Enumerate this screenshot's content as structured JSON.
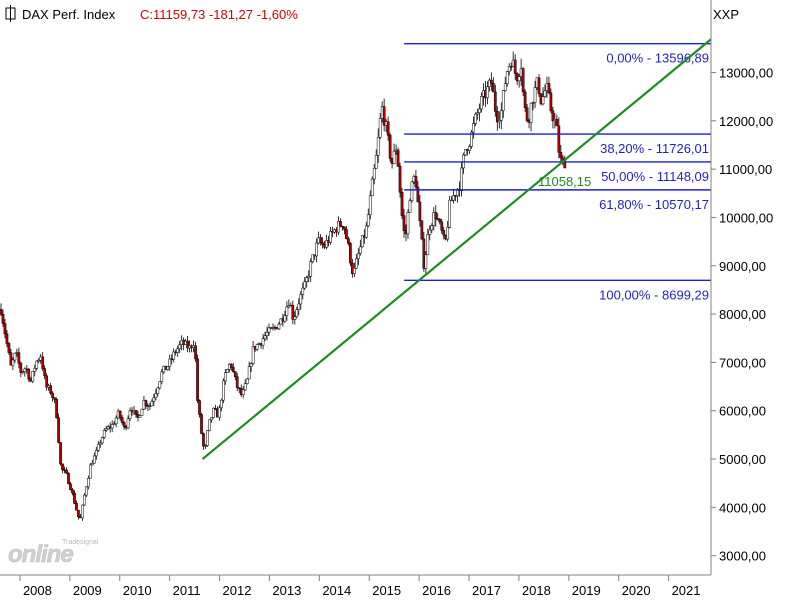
{
  "chart_data": {
    "type": "candlestick",
    "title": {
      "name": "DAX Perf. Index",
      "quote": "C:11159,73 -181,27 -1,60%"
    },
    "axis_code": "XXP",
    "y_axis": {
      "ticks": [
        "3000,00",
        "4000,00",
        "5000,00",
        "6000,00",
        "7000,00",
        "8000,00",
        "9000,00",
        "10000,00",
        "11000,00",
        "12000,00",
        "13000,00"
      ],
      "range": [
        2600,
        14500
      ]
    },
    "x_axis": {
      "ticks": [
        "2008",
        "2009",
        "2010",
        "2011",
        "2012",
        "2013",
        "2014",
        "2015",
        "2016",
        "2017",
        "2018",
        "2019",
        "2020",
        "2021"
      ],
      "range": [
        2007.6,
        2021.85
      ]
    },
    "price_path": [
      [
        2007.62,
        8100
      ],
      [
        2007.72,
        7500
      ],
      [
        2007.82,
        6900
      ],
      [
        2007.92,
        7200
      ],
      [
        2008.02,
        6800
      ],
      [
        2008.12,
        6900
      ],
      [
        2008.22,
        6600
      ],
      [
        2008.32,
        7000
      ],
      [
        2008.42,
        7150
      ],
      [
        2008.52,
        6500
      ],
      [
        2008.62,
        6400
      ],
      [
        2008.72,
        6100
      ],
      [
        2008.82,
        4800
      ],
      [
        2008.92,
        4700
      ],
      [
        2009.02,
        4400
      ],
      [
        2009.12,
        4000
      ],
      [
        2009.2,
        3700
      ],
      [
        2009.3,
        4300
      ],
      [
        2009.42,
        4900
      ],
      [
        2009.52,
        5100
      ],
      [
        2009.62,
        5400
      ],
      [
        2009.72,
        5600
      ],
      [
        2009.85,
        5700
      ],
      [
        2009.98,
        5950
      ],
      [
        2010.1,
        5600
      ],
      [
        2010.22,
        6100
      ],
      [
        2010.35,
        5800
      ],
      [
        2010.48,
        6200
      ],
      [
        2010.6,
        6100
      ],
      [
        2010.72,
        6400
      ],
      [
        2010.85,
        6800
      ],
      [
        2010.98,
        6950
      ],
      [
        2011.1,
        7200
      ],
      [
        2011.25,
        7400
      ],
      [
        2011.4,
        7300
      ],
      [
        2011.5,
        7450
      ],
      [
        2011.56,
        6200
      ],
      [
        2011.63,
        5600
      ],
      [
        2011.7,
        5100
      ],
      [
        2011.78,
        5700
      ],
      [
        2011.88,
        6000
      ],
      [
        2011.98,
        5900
      ],
      [
        2012.1,
        6700
      ],
      [
        2012.22,
        7000
      ],
      [
        2012.35,
        6500
      ],
      [
        2012.45,
        6300
      ],
      [
        2012.55,
        6600
      ],
      [
        2012.68,
        7300
      ],
      [
        2012.8,
        7400
      ],
      [
        2012.95,
        7600
      ],
      [
        2013.1,
        7700
      ],
      [
        2013.25,
        7900
      ],
      [
        2013.4,
        8300
      ],
      [
        2013.48,
        7900
      ],
      [
        2013.6,
        8300
      ],
      [
        2013.72,
        8600
      ],
      [
        2013.85,
        9100
      ],
      [
        2013.98,
        9500
      ],
      [
        2014.1,
        9400
      ],
      [
        2014.22,
        9600
      ],
      [
        2014.35,
        9800
      ],
      [
        2014.48,
        9900
      ],
      [
        2014.58,
        9400
      ],
      [
        2014.68,
        8800
      ],
      [
        2014.8,
        9300
      ],
      [
        2014.95,
        9800
      ],
      [
        2015.05,
        10600
      ],
      [
        2015.15,
        11300
      ],
      [
        2015.25,
        12300
      ],
      [
        2015.33,
        11900
      ],
      [
        2015.45,
        11100
      ],
      [
        2015.55,
        11500
      ],
      [
        2015.65,
        10100
      ],
      [
        2015.72,
        9500
      ],
      [
        2015.82,
        10500
      ],
      [
        2015.92,
        10900
      ],
      [
        2016.02,
        9800
      ],
      [
        2016.1,
        9000
      ],
      [
        2016.2,
        9800
      ],
      [
        2016.32,
        10100
      ],
      [
        2016.45,
        9700
      ],
      [
        2016.52,
        9400
      ],
      [
        2016.62,
        10300
      ],
      [
        2016.72,
        10500
      ],
      [
        2016.82,
        10700
      ],
      [
        2016.92,
        11400
      ],
      [
        2017.02,
        11600
      ],
      [
        2017.12,
        12000
      ],
      [
        2017.25,
        12400
      ],
      [
        2017.35,
        12600
      ],
      [
        2017.45,
        12800
      ],
      [
        2017.55,
        12100
      ],
      [
        2017.65,
        12200
      ],
      [
        2017.75,
        13000
      ],
      [
        2017.85,
        13300
      ],
      [
        2017.95,
        12900
      ],
      [
        2018.05,
        13200
      ],
      [
        2018.1,
        12300
      ],
      [
        2018.18,
        12000
      ],
      [
        2018.28,
        12500
      ],
      [
        2018.38,
        12800
      ],
      [
        2018.45,
        12400
      ],
      [
        2018.55,
        12700
      ],
      [
        2018.65,
        12200
      ],
      [
        2018.75,
        11900
      ],
      [
        2018.82,
        11200
      ],
      [
        2018.88,
        11100
      ],
      [
        2018.92,
        11160
      ]
    ],
    "fib_levels": [
      {
        "label": "0,00% - 13596,89",
        "value": 13596.89
      },
      {
        "label": "38,20% - 11726,01",
        "value": 11726.01
      },
      {
        "label": "50,00% - 11148,09",
        "value": 11148.09
      },
      {
        "label": "61,80% - 10570,17",
        "value": 10570.17
      },
      {
        "label": "100,00% - 8699,29",
        "value": 8699.29
      }
    ],
    "fib_start_x": 2015.7,
    "fib_end_x": 2021.85,
    "trendline": {
      "points": [
        [
          2011.66,
          5000
        ],
        [
          2016.0,
          8700
        ]
      ],
      "extend_to_x": 2021.85,
      "value_label": "11058,15"
    },
    "colors": {
      "up": "#ffffff",
      "down": "#b40000",
      "fib": "#1f1fd0",
      "trend": "#1e8c1e",
      "title_value": "#d40000"
    }
  },
  "watermark": {
    "brand": "Tradesignal",
    "text": "online"
  }
}
